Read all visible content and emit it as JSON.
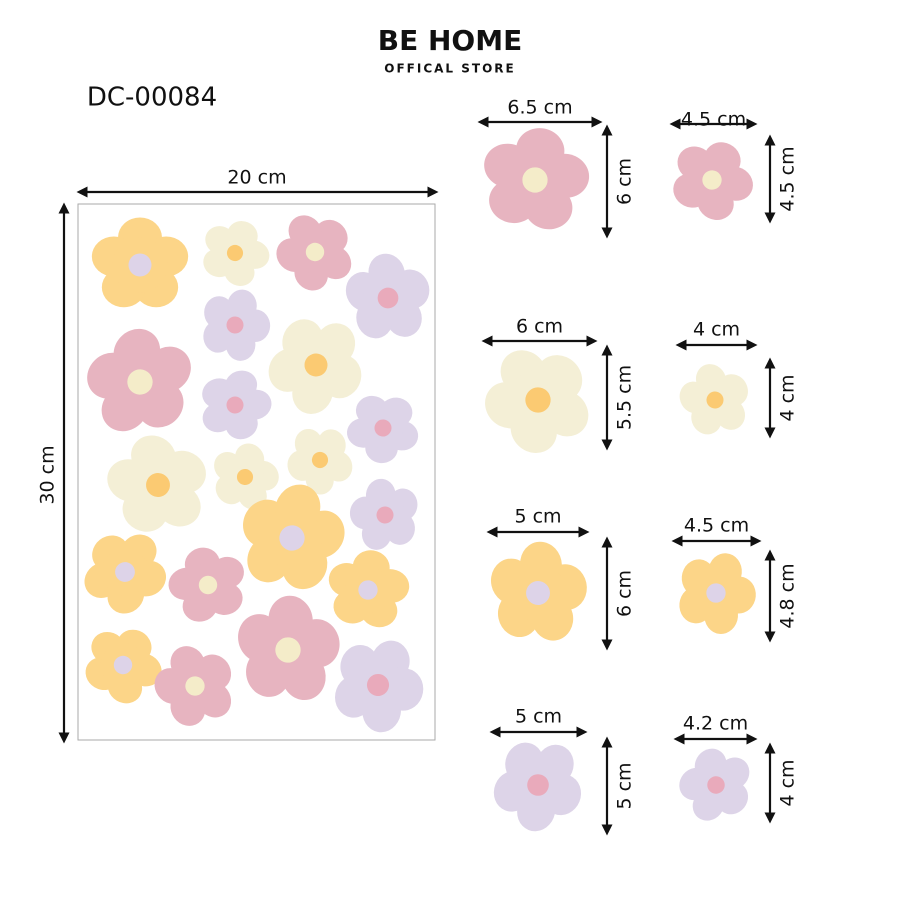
{
  "brand": {
    "name": "BE HOME",
    "tagline": "OFFICAL STORE"
  },
  "code": "DC-00084",
  "sheet": {
    "width": "20 cm",
    "height": "30 cm"
  },
  "stickers": [
    {
      "width": "6.5 cm",
      "height": "6 cm"
    },
    {
      "width": "4.5 cm",
      "height": "4.5 cm"
    },
    {
      "width": "6 cm",
      "height": "5.5 cm"
    },
    {
      "width": "4 cm",
      "height": "4 cm"
    },
    {
      "width": "5 cm",
      "height": "6 cm"
    },
    {
      "width": "4.5 cm",
      "height": "4.8 cm"
    },
    {
      "width": "5 cm",
      "height": "5 cm"
    },
    {
      "width": "4.2 cm",
      "height": "4 cm"
    }
  ]
}
